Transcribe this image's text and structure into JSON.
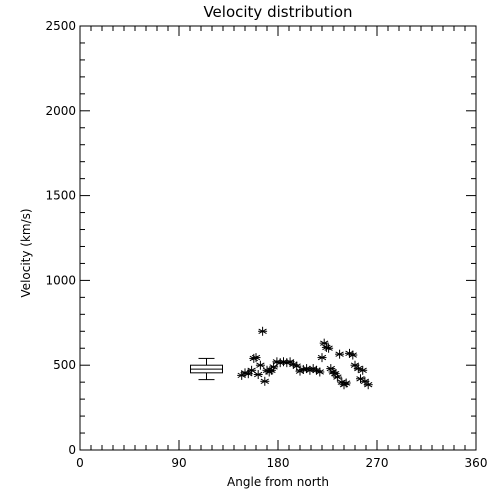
{
  "chart_data": {
    "type": "scatter",
    "title": "Velocity distribution",
    "xlabel": "Angle from north",
    "ylabel": "Velocity (km/s)",
    "xlim": [
      0,
      360
    ],
    "ylim": [
      0,
      2500
    ],
    "x_ticks": [
      0,
      90,
      180,
      270,
      360
    ],
    "y_ticks": [
      0,
      500,
      1000,
      1500,
      2000,
      2500
    ],
    "x_minor_step": 10,
    "y_minor_step": 100,
    "grid": false,
    "marker": "asterisk",
    "points": [
      [
        147,
        440
      ],
      [
        150,
        455
      ],
      [
        153,
        450
      ],
      [
        156,
        470
      ],
      [
        158,
        540
      ],
      [
        160,
        545
      ],
      [
        162,
        445
      ],
      [
        164,
        500
      ],
      [
        166,
        700
      ],
      [
        168,
        405
      ],
      [
        170,
        470
      ],
      [
        172,
        460
      ],
      [
        174,
        470
      ],
      [
        176,
        490
      ],
      [
        179,
        520
      ],
      [
        182,
        515
      ],
      [
        185,
        520
      ],
      [
        188,
        515
      ],
      [
        191,
        520
      ],
      [
        194,
        505
      ],
      [
        197,
        495
      ],
      [
        200,
        465
      ],
      [
        203,
        475
      ],
      [
        206,
        480
      ],
      [
        209,
        470
      ],
      [
        212,
        480
      ],
      [
        215,
        470
      ],
      [
        218,
        460
      ],
      [
        220,
        545
      ],
      [
        222,
        630
      ],
      [
        224,
        605
      ],
      [
        226,
        600
      ],
      [
        228,
        480
      ],
      [
        230,
        460
      ],
      [
        232,
        450
      ],
      [
        234,
        430
      ],
      [
        236,
        565
      ],
      [
        238,
        400
      ],
      [
        240,
        385
      ],
      [
        242,
        395
      ],
      [
        245,
        570
      ],
      [
        248,
        560
      ],
      [
        250,
        500
      ],
      [
        253,
        480
      ],
      [
        255,
        420
      ],
      [
        257,
        470
      ],
      [
        259,
        405
      ],
      [
        262,
        385
      ]
    ],
    "box": {
      "x": 115,
      "min": 415,
      "q1": 455,
      "median": 477,
      "q3": 500,
      "max": 540
    }
  }
}
